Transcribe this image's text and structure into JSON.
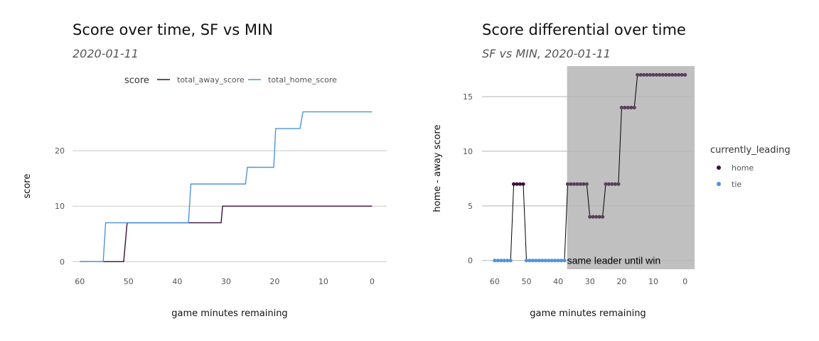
{
  "chart_data": [
    {
      "type": "line",
      "title": "Score over time, SF vs MIN",
      "subtitle": "2020-01-11",
      "xlabel": "game minutes remaining",
      "ylabel": "score",
      "xlim": [
        61.5,
        -3
      ],
      "ylim": [
        -1.5,
        30
      ],
      "x_ticks": [
        60,
        50,
        40,
        30,
        20,
        10,
        0
      ],
      "y_ticks": [
        0,
        10,
        20
      ],
      "grid": "horizontal major only",
      "legend": {
        "title": "score",
        "position": "top"
      },
      "series": [
        {
          "name": "total_away_score",
          "color": "#3d0f3a",
          "points": [
            [
              60,
              0
            ],
            [
              51,
              0
            ],
            [
              50.3,
              7
            ],
            [
              31,
              7
            ],
            [
              30.7,
              10
            ],
            [
              0,
              10
            ]
          ]
        },
        {
          "name": "total_home_score",
          "color": "#4f93dc",
          "points": [
            [
              60,
              0
            ],
            [
              55.2,
              0
            ],
            [
              54.7,
              7
            ],
            [
              37.7,
              7
            ],
            [
              37.2,
              14
            ],
            [
              26,
              14
            ],
            [
              25.6,
              17
            ],
            [
              20.2,
              17
            ],
            [
              19.8,
              24
            ],
            [
              14.8,
              24
            ],
            [
              14.2,
              27
            ],
            [
              0,
              27
            ]
          ]
        }
      ]
    },
    {
      "type": "scatter",
      "title": "Score differential over time",
      "subtitle": "SF vs MIN, 2020-01-11",
      "xlabel": "game minutes remaining",
      "ylabel": "home - away score",
      "xlim": [
        64,
        -3
      ],
      "ylim": [
        -0.8,
        17.8
      ],
      "x_ticks": [
        60,
        50,
        40,
        30,
        20,
        10,
        0
      ],
      "y_ticks": [
        0,
        5,
        10,
        15
      ],
      "grid": "horizontal major only",
      "shaded_region": {
        "x_from": 37.2,
        "x_to": -3,
        "color": "#c0c0c0"
      },
      "annotation": {
        "text": "same leader until win",
        "x": 37.2,
        "y": 0
      },
      "legend": {
        "title": "currently_leading",
        "position": "right",
        "entries": [
          {
            "label": "home",
            "color": "#3d0f3a"
          },
          {
            "label": "tie",
            "color": "#4f93dc"
          }
        ]
      },
      "line_color": "#000000",
      "points": [
        [
          60,
          0,
          "tie"
        ],
        [
          59,
          0,
          "tie"
        ],
        [
          58,
          0,
          "tie"
        ],
        [
          57,
          0,
          "tie"
        ],
        [
          56,
          0,
          "tie"
        ],
        [
          55,
          0,
          "tie"
        ],
        [
          54,
          7,
          "home"
        ],
        [
          53,
          7,
          "home"
        ],
        [
          52,
          7,
          "home"
        ],
        [
          51,
          7,
          "home"
        ],
        [
          50,
          0,
          "tie"
        ],
        [
          49,
          0,
          "tie"
        ],
        [
          48,
          0,
          "tie"
        ],
        [
          47,
          0,
          "tie"
        ],
        [
          46,
          0,
          "tie"
        ],
        [
          45,
          0,
          "tie"
        ],
        [
          44,
          0,
          "tie"
        ],
        [
          43,
          0,
          "tie"
        ],
        [
          42,
          0,
          "tie"
        ],
        [
          41,
          0,
          "tie"
        ],
        [
          40,
          0,
          "tie"
        ],
        [
          39,
          0,
          "tie"
        ],
        [
          38,
          0,
          "tie"
        ],
        [
          37,
          7,
          "home"
        ],
        [
          36,
          7,
          "home"
        ],
        [
          35,
          7,
          "home"
        ],
        [
          34,
          7,
          "home"
        ],
        [
          33,
          7,
          "home"
        ],
        [
          32,
          7,
          "home"
        ],
        [
          31,
          7,
          "home"
        ],
        [
          30,
          4,
          "home"
        ],
        [
          29,
          4,
          "home"
        ],
        [
          28,
          4,
          "home"
        ],
        [
          27,
          4,
          "home"
        ],
        [
          26,
          4,
          "home"
        ],
        [
          25,
          7,
          "home"
        ],
        [
          24,
          7,
          "home"
        ],
        [
          23,
          7,
          "home"
        ],
        [
          22,
          7,
          "home"
        ],
        [
          21,
          7,
          "home"
        ],
        [
          20,
          14,
          "home"
        ],
        [
          19,
          14,
          "home"
        ],
        [
          18,
          14,
          "home"
        ],
        [
          17,
          14,
          "home"
        ],
        [
          16,
          14,
          "home"
        ],
        [
          15,
          17,
          "home"
        ],
        [
          14,
          17,
          "home"
        ],
        [
          13,
          17,
          "home"
        ],
        [
          12,
          17,
          "home"
        ],
        [
          11,
          17,
          "home"
        ],
        [
          10,
          17,
          "home"
        ],
        [
          9,
          17,
          "home"
        ],
        [
          8,
          17,
          "home"
        ],
        [
          7,
          17,
          "home"
        ],
        [
          6,
          17,
          "home"
        ],
        [
          5,
          17,
          "home"
        ],
        [
          4,
          17,
          "home"
        ],
        [
          3,
          17,
          "home"
        ],
        [
          2,
          17,
          "home"
        ],
        [
          1,
          17,
          "home"
        ],
        [
          0,
          17,
          "home"
        ]
      ]
    }
  ]
}
